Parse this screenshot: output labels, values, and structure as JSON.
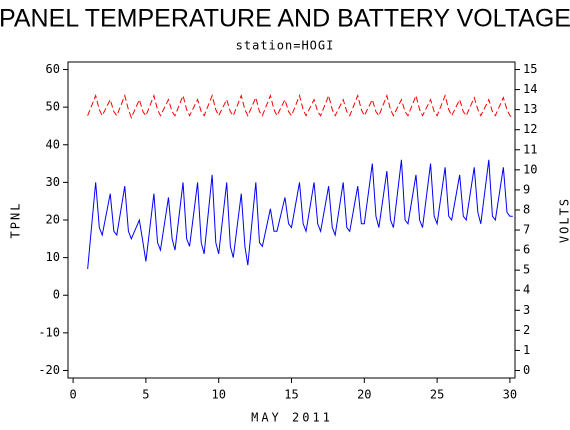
{
  "chart_data": {
    "type": "line",
    "title": "PANEL TEMPERATURE AND BATTERY VOLTAGE",
    "subtitle": "station=HOGI",
    "x_label": "MAY 2011",
    "y_label": "TPNL",
    "y2_label": "VOLTS",
    "x": [
      1,
      1.55,
      1.8,
      2,
      2.55,
      2.8,
      3,
      3.55,
      3.8,
      4,
      4.55,
      4.8,
      5,
      5.55,
      5.8,
      6,
      6.55,
      6.8,
      7,
      7.55,
      7.8,
      8,
      8.55,
      8.8,
      9,
      9.55,
      9.8,
      10,
      10.55,
      10.8,
      11,
      11.55,
      11.8,
      12,
      12.55,
      12.8,
      13,
      13.55,
      13.8,
      14,
      14.55,
      14.8,
      15,
      15.55,
      15.8,
      16,
      16.55,
      16.8,
      17,
      17.55,
      17.8,
      18,
      18.55,
      18.8,
      19,
      19.55,
      19.8,
      20,
      20.55,
      20.8,
      21,
      21.55,
      21.8,
      22,
      22.55,
      22.8,
      23,
      23.55,
      23.8,
      24,
      24.55,
      24.8,
      25,
      25.55,
      25.8,
      26,
      26.55,
      26.8,
      27,
      27.55,
      27.8,
      28,
      28.55,
      28.8,
      29,
      29.55,
      29.8,
      30,
      30.2
    ],
    "series": [
      {
        "name": "TPNL",
        "color": "#0000ff",
        "axis": "y",
        "dash": false,
        "values": [
          7,
          30,
          18,
          16,
          27,
          17,
          16,
          29,
          17,
          15,
          20,
          14,
          9,
          27,
          14,
          12,
          26,
          15,
          12,
          30,
          15,
          13,
          30,
          14,
          11,
          32,
          14,
          11,
          30,
          13,
          10,
          27,
          13,
          8,
          30,
          14,
          13,
          23,
          17,
          17,
          26,
          19,
          18,
          30,
          19,
          17,
          30,
          19,
          17,
          29,
          18,
          16,
          30,
          18,
          17,
          29,
          19,
          19,
          35,
          21,
          18,
          33,
          20,
          18,
          36,
          20,
          19,
          32,
          20,
          18,
          35,
          21,
          19,
          34,
          21,
          20,
          32,
          21,
          20,
          34,
          22,
          19,
          36,
          21,
          20,
          34,
          22,
          21,
          21
        ]
      },
      {
        "name": "VOLTS",
        "color": "#ff0000",
        "axis": "y2",
        "dash": true,
        "values": [
          12.7,
          13.7,
          13.0,
          12.7,
          13.5,
          12.9,
          12.7,
          13.7,
          13.0,
          12.6,
          13.5,
          12.9,
          12.7,
          13.7,
          13.0,
          12.7,
          13.5,
          12.9,
          12.7,
          13.7,
          13.0,
          12.7,
          13.5,
          12.9,
          12.7,
          13.7,
          13.0,
          12.7,
          13.5,
          12.9,
          12.7,
          13.7,
          13.0,
          12.7,
          13.6,
          12.9,
          12.7,
          13.7,
          13.0,
          12.7,
          13.5,
          12.9,
          12.7,
          13.7,
          13.0,
          12.7,
          13.5,
          12.9,
          12.7,
          13.7,
          13.0,
          12.7,
          13.5,
          12.9,
          12.7,
          13.7,
          13.0,
          12.7,
          13.5,
          12.9,
          12.7,
          13.7,
          13.0,
          12.7,
          13.5,
          12.9,
          12.7,
          13.7,
          13.0,
          12.7,
          13.5,
          12.9,
          12.7,
          13.7,
          13.0,
          12.7,
          13.5,
          12.9,
          12.7,
          13.6,
          13.0,
          12.7,
          13.5,
          12.9,
          12.7,
          13.6,
          13.0,
          12.7,
          12.6
        ]
      }
    ],
    "xlim": [
      -0.35,
      30.35
    ],
    "xticks": [
      0,
      5,
      10,
      15,
      20,
      25,
      30
    ],
    "ylim": [
      -22,
      62
    ],
    "yticks": [
      -20,
      -10,
      0,
      10,
      20,
      30,
      40,
      50,
      60
    ],
    "y2lim": [
      -0.375,
      15.375
    ],
    "y2ticks": [
      0,
      1,
      2,
      3,
      4,
      5,
      6,
      7,
      8,
      9,
      10,
      11,
      12,
      13,
      14,
      15
    ]
  }
}
